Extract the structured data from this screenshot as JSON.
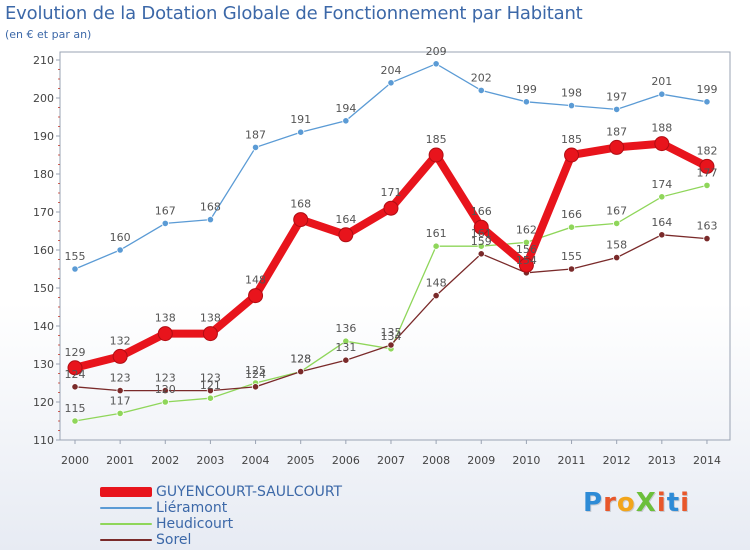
{
  "header": {
    "title": "Evolution de la Dotation Globale de Fonctionnement par Habitant",
    "subtitle": "(en € et par an)"
  },
  "logo": {
    "text": "ProXiti",
    "letter_colors": [
      "#2e8bd6",
      "#e8572a",
      "#f2a51a",
      "#6cbf3b",
      "#e8572a",
      "#2e8bd6",
      "#e8572a"
    ]
  },
  "chart_data": {
    "type": "line",
    "title": "Evolution de la Dotation Globale de Fonctionnement par Habitant",
    "subtitle": "(en € et par an)",
    "xlabel": "",
    "ylabel": "",
    "x": [
      "2000",
      "2001",
      "2002",
      "2003",
      "2004",
      "2005",
      "2006",
      "2007",
      "2008",
      "2009",
      "2010",
      "2011",
      "2012",
      "2013",
      "2014"
    ],
    "ylim": [
      110,
      210
    ],
    "yticks": [
      110,
      120,
      130,
      140,
      150,
      160,
      170,
      180,
      190,
      200,
      210
    ],
    "grid": false,
    "legend_position": "bottom-left",
    "series": [
      {
        "name": "GUYENCOURT-SAULCOURT",
        "color": "#e8141c",
        "emphasis": true,
        "values": [
          129,
          132,
          138,
          138,
          148,
          168,
          164,
          171,
          185,
          166,
          156,
          185,
          187,
          188,
          182
        ]
      },
      {
        "name": "Liéramont",
        "color": "#5b9bd5",
        "emphasis": false,
        "values": [
          155,
          160,
          167,
          168,
          187,
          191,
          194,
          204,
          209,
          202,
          199,
          198,
          197,
          201,
          199
        ]
      },
      {
        "name": "Heudicourt",
        "color": "#8fd65a",
        "emphasis": false,
        "values": [
          115,
          117,
          120,
          121,
          125,
          128,
          136,
          134,
          161,
          161,
          162,
          166,
          167,
          174,
          177
        ]
      },
      {
        "name": "Sorel",
        "color": "#7a2a2a",
        "emphasis": false,
        "values": [
          124,
          123,
          123,
          123,
          124,
          128,
          131,
          135,
          148,
          159,
          154,
          155,
          158,
          164,
          163
        ]
      }
    ]
  }
}
